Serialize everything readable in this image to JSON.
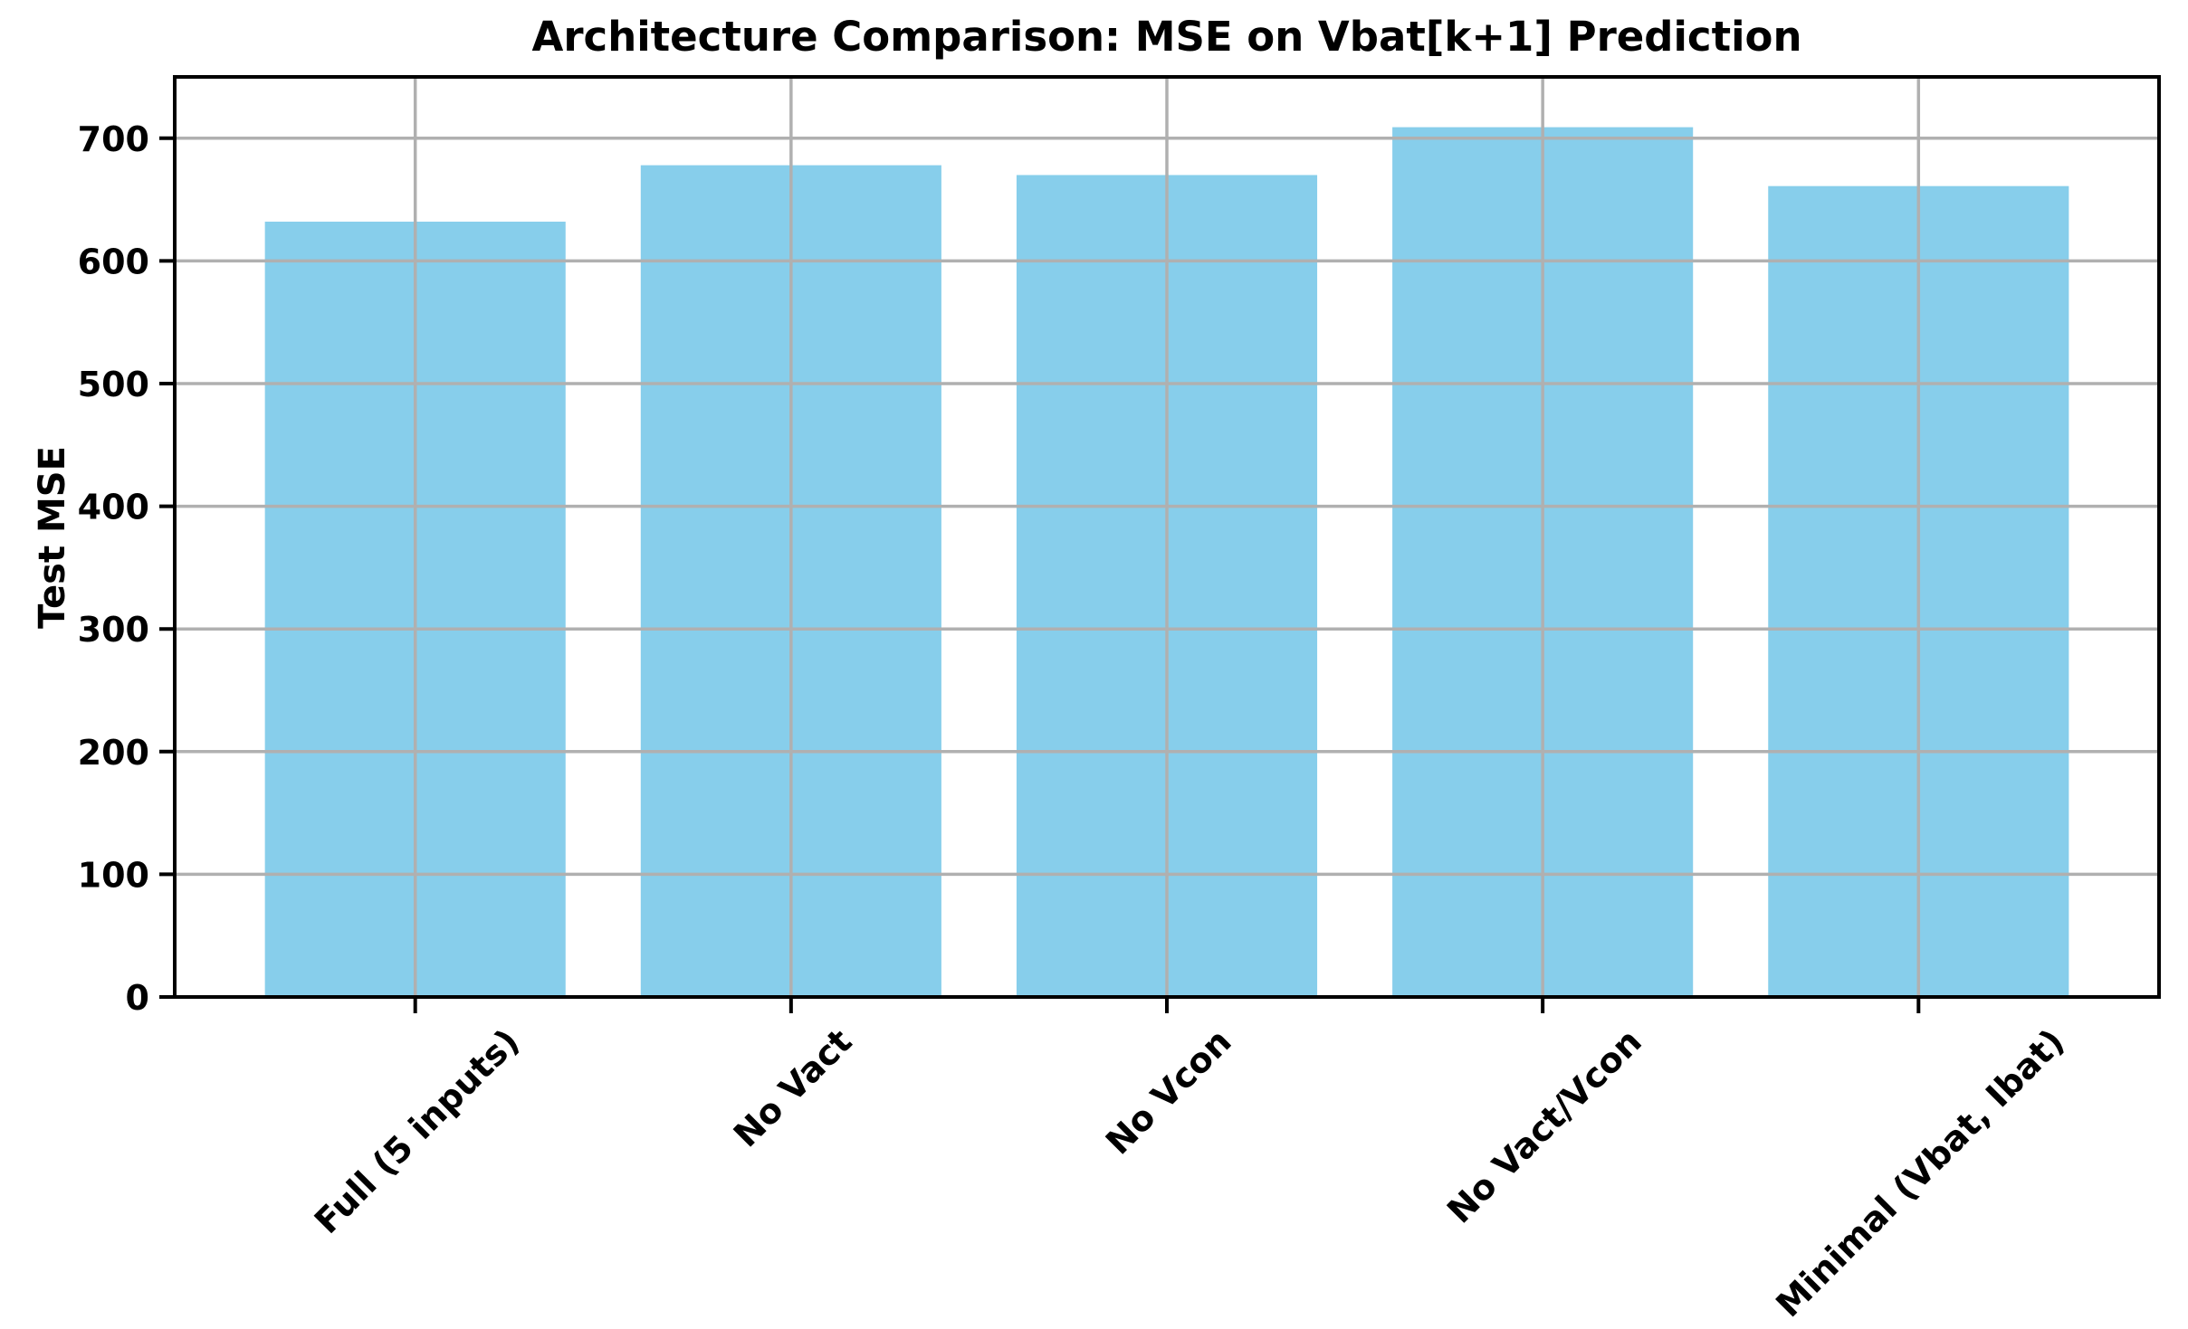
{
  "chart_data": {
    "type": "bar",
    "title": "Architecture Comparison: MSE on Vbat[k+1] Prediction",
    "ylabel": "Test MSE",
    "xlabel": "",
    "categories": [
      "Full (5 inputs)",
      "No Vact",
      "No Vcon",
      "No Vact/Vcon",
      "Minimal (Vbat, Ibat)"
    ],
    "values": [
      632,
      678,
      670,
      709,
      661
    ],
    "yticks": [
      0,
      100,
      200,
      300,
      400,
      500,
      600,
      700
    ],
    "ylim": [
      0,
      750
    ],
    "grid": "both",
    "grid_on_top_of_bars": true,
    "legend": "none",
    "bar_color": "#87CEEB",
    "grid_color": "#b0b0b0",
    "axis_color": "#000000",
    "text_color": "#000000",
    "background_color": "#ffffff",
    "x_tick_rotation_deg": 45
  }
}
